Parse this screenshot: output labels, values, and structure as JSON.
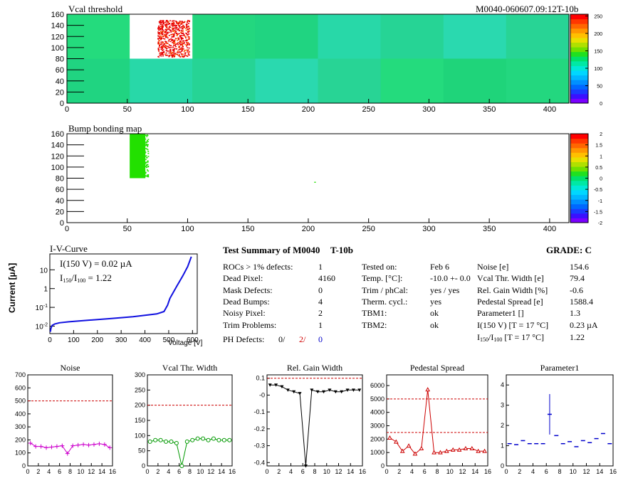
{
  "map1": {
    "title": "Vcal threshold",
    "id_label": "M0040-060607.09:12T-10b",
    "x_ticks": [
      "0",
      "50",
      "100",
      "150",
      "200",
      "250",
      "300",
      "350",
      "400"
    ],
    "y_ticks": [
      "0",
      "20",
      "40",
      "60",
      "80",
      "100",
      "120",
      "140",
      "160"
    ],
    "palette_ticks": [
      "0",
      "50",
      "100",
      "150",
      "200",
      "250"
    ]
  },
  "map2": {
    "title": "Bump bonding map",
    "x_ticks": [
      "0",
      "50",
      "100",
      "150",
      "200",
      "250",
      "300",
      "350",
      "400"
    ],
    "y_ticks": [
      "0",
      "20",
      "40",
      "60",
      "80",
      "100",
      "120",
      "140",
      "160"
    ],
    "palette_ticks": [
      "-2",
      "-1.5",
      "-1",
      "-0.5",
      "0",
      "0.5",
      "1",
      "1.5",
      "2"
    ]
  },
  "iv": {
    "title": "I-V-Curve",
    "ylabel": "Current [µA]",
    "xlabel": "Voltage [V]",
    "x_ticks": [
      "0",
      "100",
      "200",
      "300",
      "400",
      "500",
      "600"
    ],
    "y_ticks": [
      "10^-2",
      "10^-1",
      "1",
      "10"
    ],
    "i150_label": "I(150 V) = 0.02 µA",
    "ratio_prefix": "I",
    "ratio_sub1": "150",
    "ratio_mid": "/I",
    "ratio_sub2": "100",
    "ratio_value": " =  1.22"
  },
  "summary": {
    "title_left": "Test Summary of M0040",
    "title_mid": "T-10b",
    "grade_label": "GRADE:  C",
    "col1": [
      {
        "label": "ROCs > 1% defects:",
        "value": "1"
      },
      {
        "label": "Dead Pixel:",
        "value": "4160"
      },
      {
        "label": "Mask Defects:",
        "value": "0"
      },
      {
        "label": "Dead Bumps:",
        "value": "4"
      },
      {
        "label": "Noisy Pixel:",
        "value": "2"
      },
      {
        "label": "Trim Problems:",
        "value": "1"
      }
    ],
    "ph_label": "PH Defects:",
    "ph_black": "0/",
    "ph_red": "2/",
    "ph_blue": "0",
    "col2": [
      {
        "label": "Tested on:",
        "value": "Feb 6"
      },
      {
        "label": "Temp. [°C]:",
        "value": "-10.0 +- 0.0"
      },
      {
        "label": "Trim / phCal:",
        "value": "yes / yes"
      },
      {
        "label": "Therm. cycl.:",
        "value": "yes"
      },
      {
        "label": "TBM1:",
        "value": "ok"
      },
      {
        "label": "TBM2:",
        "value": "ok"
      }
    ],
    "col3": [
      {
        "label": "Noise [e]",
        "value": "154.6"
      },
      {
        "label": "Vcal Thr. Width [e]",
        "value": "79.4"
      },
      {
        "label": "Rel. Gain Width [%]",
        "value": "-0.6"
      },
      {
        "label": "Pedestal Spread [e]",
        "value": "1588.4"
      },
      {
        "label": "Parameter1 []",
        "value": "1.3"
      },
      {
        "label": "I(150 V) [T = 17 °C]",
        "value": "0.23 µA"
      }
    ],
    "ratio_prefix": "I",
    "ratio_sub1": "150",
    "ratio_mid": "/I",
    "ratio_sub2": "100",
    "ratio_rest": "  [T = 17 °C]",
    "ratio_value": "1.22"
  },
  "colors": {
    "magenta": "#cc00cc",
    "green": "#009900",
    "red": "#cc0000",
    "blue": "#0000cc",
    "cut": "#cc0000"
  },
  "chart_data": [
    {
      "type": "line",
      "title": "Noise",
      "x": [
        0,
        1,
        2,
        3,
        4,
        5,
        6,
        7,
        8,
        9,
        10,
        11,
        12,
        13,
        14,
        15
      ],
      "values": [
        175,
        150,
        150,
        140,
        145,
        150,
        155,
        95,
        155,
        160,
        165,
        160,
        165,
        170,
        165,
        140
      ],
      "cut": 500,
      "xlim": [
        0,
        16
      ],
      "ylim": [
        0,
        700
      ],
      "x_ticks": [
        0,
        2,
        4,
        6,
        8,
        10,
        12,
        14,
        16
      ],
      "y_ticks": [
        0,
        100,
        200,
        300,
        400,
        500,
        600,
        700
      ],
      "color": "magenta",
      "marker": "cross"
    },
    {
      "type": "line",
      "title": "Vcal Thr. Width",
      "x": [
        0,
        1,
        2,
        3,
        4,
        5,
        6,
        7,
        8,
        9,
        10,
        11,
        12,
        13,
        14,
        15
      ],
      "values": [
        80,
        85,
        85,
        80,
        80,
        75,
        0,
        80,
        85,
        90,
        90,
        85,
        90,
        85,
        85,
        85
      ],
      "cut": 200,
      "xlim": [
        0,
        16
      ],
      "ylim": [
        0,
        300
      ],
      "x_ticks": [
        0,
        2,
        4,
        6,
        8,
        10,
        12,
        14,
        16
      ],
      "y_ticks": [
        0,
        50,
        100,
        150,
        200,
        250,
        300
      ],
      "color": "green",
      "marker": "circle"
    },
    {
      "type": "line",
      "title": "Rel. Gain Width",
      "x": [
        0,
        1,
        2,
        3,
        4,
        5,
        6,
        7,
        8,
        9,
        10,
        11,
        12,
        13,
        14,
        15
      ],
      "values": [
        0.06,
        0.06,
        0.05,
        0.03,
        0.02,
        0.01,
        -0.42,
        0.03,
        0.02,
        0.02,
        0.03,
        0.02,
        0.02,
        0.03,
        0.03,
        0.03
      ],
      "cut": 0.1,
      "xlim": [
        0,
        16
      ],
      "ylim": [
        -0.42,
        0.12
      ],
      "x_ticks": [
        0,
        2,
        4,
        6,
        8,
        10,
        12,
        14,
        16
      ],
      "y_ticks": [
        -0.4,
        -0.3,
        -0.2,
        -0.1,
        0,
        0.1
      ],
      "y_tick_labels": [
        "-0.4",
        "-0.3",
        "-0.2",
        "-0.1",
        "-0",
        "0.1"
      ],
      "color": "black",
      "marker": "triangle"
    },
    {
      "type": "line",
      "title": "Pedestal Spread",
      "x": [
        0,
        1,
        2,
        3,
        4,
        5,
        6,
        7,
        8,
        9,
        10,
        11,
        12,
        13,
        14,
        15
      ],
      "values": [
        2100,
        1800,
        1100,
        1500,
        900,
        1300,
        5700,
        1000,
        1000,
        1100,
        1200,
        1200,
        1300,
        1300,
        1100,
        1100
      ],
      "cut": 5000,
      "cut2": 2500,
      "xlim": [
        0,
        16
      ],
      "ylim": [
        0,
        6800
      ],
      "x_ticks": [
        0,
        2,
        4,
        6,
        8,
        10,
        12,
        14,
        16
      ],
      "y_ticks": [
        0,
        1000,
        2000,
        3000,
        4000,
        5000,
        6000
      ],
      "color": "red",
      "marker": "triangle-open"
    },
    {
      "type": "scatter",
      "title": "Parameter1",
      "x": [
        0,
        1,
        2,
        3,
        4,
        5,
        6,
        7,
        8,
        9,
        10,
        11,
        12,
        13,
        14,
        15
      ],
      "values": [
        1.1,
        1.05,
        1.25,
        1.1,
        1.1,
        1.1,
        2.55,
        1.5,
        1.1,
        1.2,
        0.95,
        1.25,
        1.15,
        1.35,
        1.6,
        1.1
      ],
      "errors": [
        0,
        0,
        0,
        0,
        0,
        0,
        1.0,
        0,
        0,
        0,
        0,
        0,
        0,
        0,
        0,
        0
      ],
      "xlim": [
        0,
        16
      ],
      "ylim": [
        0,
        4.5
      ],
      "x_ticks": [
        0,
        2,
        4,
        6,
        8,
        10,
        12,
        14,
        16
      ],
      "y_ticks": [
        0,
        1,
        2,
        3,
        4
      ],
      "color": "blue",
      "marker": "hline"
    }
  ]
}
